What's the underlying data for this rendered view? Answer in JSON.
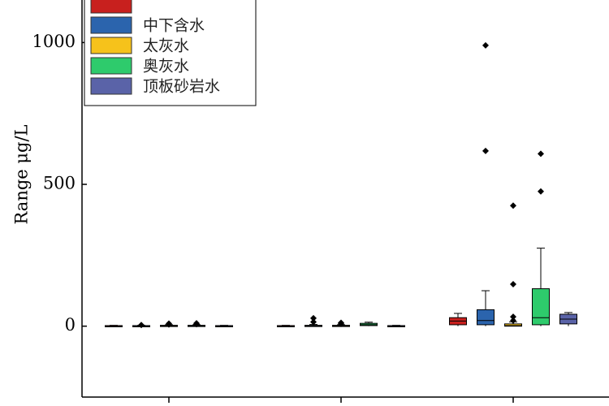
{
  "chart_data": {
    "type": "box",
    "ylabel": "Range μg/L",
    "ylim": [
      -250,
      1150
    ],
    "yticks": [
      0,
      500,
      1000
    ],
    "legend": {
      "placement": "top-left",
      "entries": [
        {
          "name": "",
          "color": "#c8201e"
        },
        {
          "name": "中下含水",
          "color": "#2b64ad"
        },
        {
          "name": "太灰水",
          "color": "#f6c21b"
        },
        {
          "name": "奥灰水",
          "color": "#2ecb6c"
        },
        {
          "name": "顶板砂岩水",
          "color": "#5a63a8"
        }
      ]
    },
    "groups": [
      {
        "boxes": [
          {
            "q1": 0,
            "median": 1,
            "q3": 2,
            "whisker_low": 0,
            "whisker_high": 3,
            "outliers": []
          },
          {
            "q1": 0,
            "median": 1,
            "q3": 2,
            "whisker_low": 0,
            "whisker_high": 3,
            "outliers": [
              4
            ]
          },
          {
            "q1": 0,
            "median": 1,
            "q3": 3,
            "whisker_low": 0,
            "whisker_high": 5,
            "outliers": [
              6,
              9
            ]
          },
          {
            "q1": 0,
            "median": 1,
            "q3": 3,
            "whisker_low": 0,
            "whisker_high": 5,
            "outliers": [
              7,
              10
            ]
          },
          {
            "q1": 0,
            "median": 1,
            "q3": 2,
            "whisker_low": 0,
            "whisker_high": 3,
            "outliers": []
          }
        ]
      },
      {
        "boxes": [
          {
            "q1": 0,
            "median": 1,
            "q3": 2,
            "whisker_low": 0,
            "whisker_high": 3,
            "outliers": []
          },
          {
            "q1": 0,
            "median": 1,
            "q3": 3,
            "whisker_low": 0,
            "whisker_high": 6,
            "outliers": [
              15,
              28
            ]
          },
          {
            "q1": 0,
            "median": 1,
            "q3": 3,
            "whisker_low": 0,
            "whisker_high": 5,
            "outliers": [
              8,
              12
            ]
          },
          {
            "q1": 2,
            "median": 5,
            "q3": 10,
            "whisker_low": 0,
            "whisker_high": 14,
            "outliers": []
          },
          {
            "q1": 0,
            "median": 1,
            "q3": 2,
            "whisker_low": 0,
            "whisker_high": 3,
            "outliers": []
          }
        ]
      },
      {
        "boxes": [
          {
            "q1": 5,
            "median": 18,
            "q3": 30,
            "whisker_low": 0,
            "whisker_high": 45,
            "outliers": []
          },
          {
            "q1": 5,
            "median": 20,
            "q3": 58,
            "whisker_low": 0,
            "whisker_high": 125,
            "outliers": [
              618,
              990
            ]
          },
          {
            "q1": 0,
            "median": 2,
            "q3": 8,
            "whisker_low": 0,
            "whisker_high": 15,
            "outliers": [
              20,
              33,
              148,
              425
            ]
          },
          {
            "q1": 5,
            "median": 30,
            "q3": 132,
            "whisker_low": 0,
            "whisker_high": 275,
            "outliers": [
              475,
              608
            ]
          },
          {
            "q1": 8,
            "median": 25,
            "q3": 42,
            "whisker_low": 0,
            "whisker_high": 48,
            "outliers": []
          }
        ]
      }
    ]
  }
}
